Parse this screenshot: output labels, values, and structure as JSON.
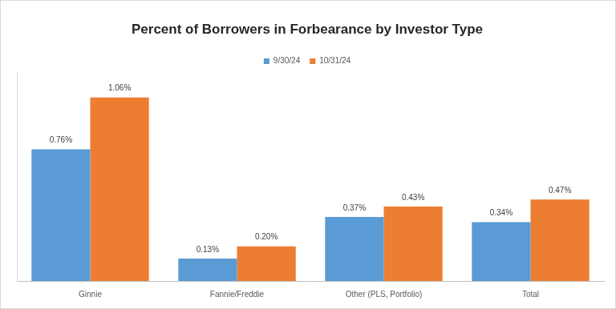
{
  "chart_data": {
    "type": "bar",
    "title": "Percent of Borrowers in Forbearance by Investor Type",
    "categories": [
      "Ginnie",
      "Fannie/Freddie",
      "Other (PLS, Portfolio)",
      "Total"
    ],
    "series": [
      {
        "name": "9/30/24",
        "color": "#5b9bd5",
        "values": [
          0.76,
          0.13,
          0.37,
          0.34
        ],
        "value_labels": [
          "0.76%",
          "0.13%",
          "0.37%",
          "0.34%"
        ]
      },
      {
        "name": "10/31/24",
        "color": "#ed7d31",
        "values": [
          1.06,
          0.2,
          0.43,
          0.47
        ],
        "value_labels": [
          "1.06%",
          "0.20%",
          "0.43%",
          "0.47%"
        ]
      }
    ],
    "ylim": [
      0,
      1.2
    ],
    "grid": false,
    "legend": "top",
    "data_labels": true,
    "tick_labels": "x"
  }
}
